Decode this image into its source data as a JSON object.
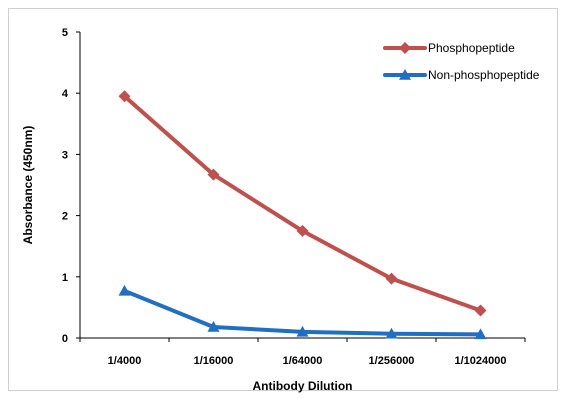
{
  "chart_data": {
    "type": "line",
    "title": "",
    "xlabel": "Antibody Dilution",
    "ylabel": "Absorbance (450nm)",
    "categories": [
      "1/4000",
      "1/16000",
      "1/64000",
      "1/256000",
      "1/1024000"
    ],
    "ylim": [
      0,
      5
    ],
    "yticks": [
      "0",
      "1",
      "2",
      "3",
      "4",
      "5"
    ],
    "grid": false,
    "legend_position": "top-right",
    "series": [
      {
        "name": "Phosphopeptide",
        "values": [
          3.95,
          2.67,
          1.75,
          0.97,
          0.45
        ],
        "color": "#c0504d",
        "marker": "diamond"
      },
      {
        "name": "Non-phosphopeptide",
        "values": [
          0.77,
          0.18,
          0.1,
          0.07,
          0.06
        ],
        "color": "#1f6fc5",
        "marker": "triangle"
      }
    ]
  }
}
